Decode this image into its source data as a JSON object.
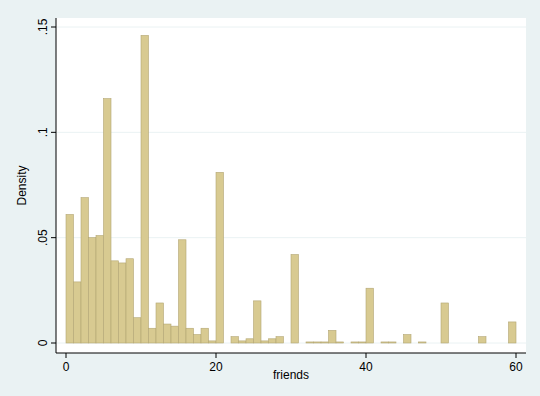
{
  "chart_data": {
    "type": "histogram",
    "x_label": "friends",
    "y_label": "Density",
    "bins": [
      0,
      1,
      2,
      3,
      4,
      5,
      6,
      7,
      8,
      9,
      10,
      11,
      12,
      13,
      14,
      15,
      16,
      17,
      18,
      19,
      20,
      21,
      22,
      23,
      24,
      25,
      26,
      27,
      28,
      29,
      30,
      31,
      32,
      33,
      34,
      35,
      36,
      37,
      38,
      39,
      40,
      41,
      42,
      43,
      44,
      45,
      46,
      47,
      48,
      49,
      50,
      51,
      52,
      53,
      54,
      55,
      56,
      57,
      58,
      59,
      60
    ],
    "values": [
      0.061,
      0.029,
      0.069,
      0.05,
      0.051,
      0.116,
      0.039,
      0.038,
      0.04,
      0.012,
      0.146,
      0.007,
      0.019,
      0.009,
      0.008,
      0.049,
      0.007,
      0.004,
      0.007,
      0.001,
      0.081,
      0,
      0.003,
      0.001,
      0.002,
      0.02,
      0.001,
      0.002,
      0.003,
      0,
      0.042,
      0,
      0.0005,
      0.0005,
      0.0005,
      0.006,
      0.0005,
      0,
      0.0005,
      0.0005,
      0.026,
      0,
      0.0005,
      0.0005,
      0,
      0.004,
      0,
      0.0005,
      0,
      0,
      0.019,
      0,
      0,
      0,
      0,
      0.003,
      0,
      0,
      0,
      0.01
    ],
    "color": "#d8ca91",
    "xlim": [
      0,
      60
    ],
    "xticks": [
      0,
      20,
      40,
      60
    ],
    "ylim": [
      0,
      0.15
    ],
    "yticks": [
      0,
      {
        "value": 0.05,
        "label": ".05"
      },
      {
        "value": 0.1,
        "label": ".1"
      },
      {
        "value": 0.15,
        "label": ".15"
      }
    ],
    "grid": true
  }
}
